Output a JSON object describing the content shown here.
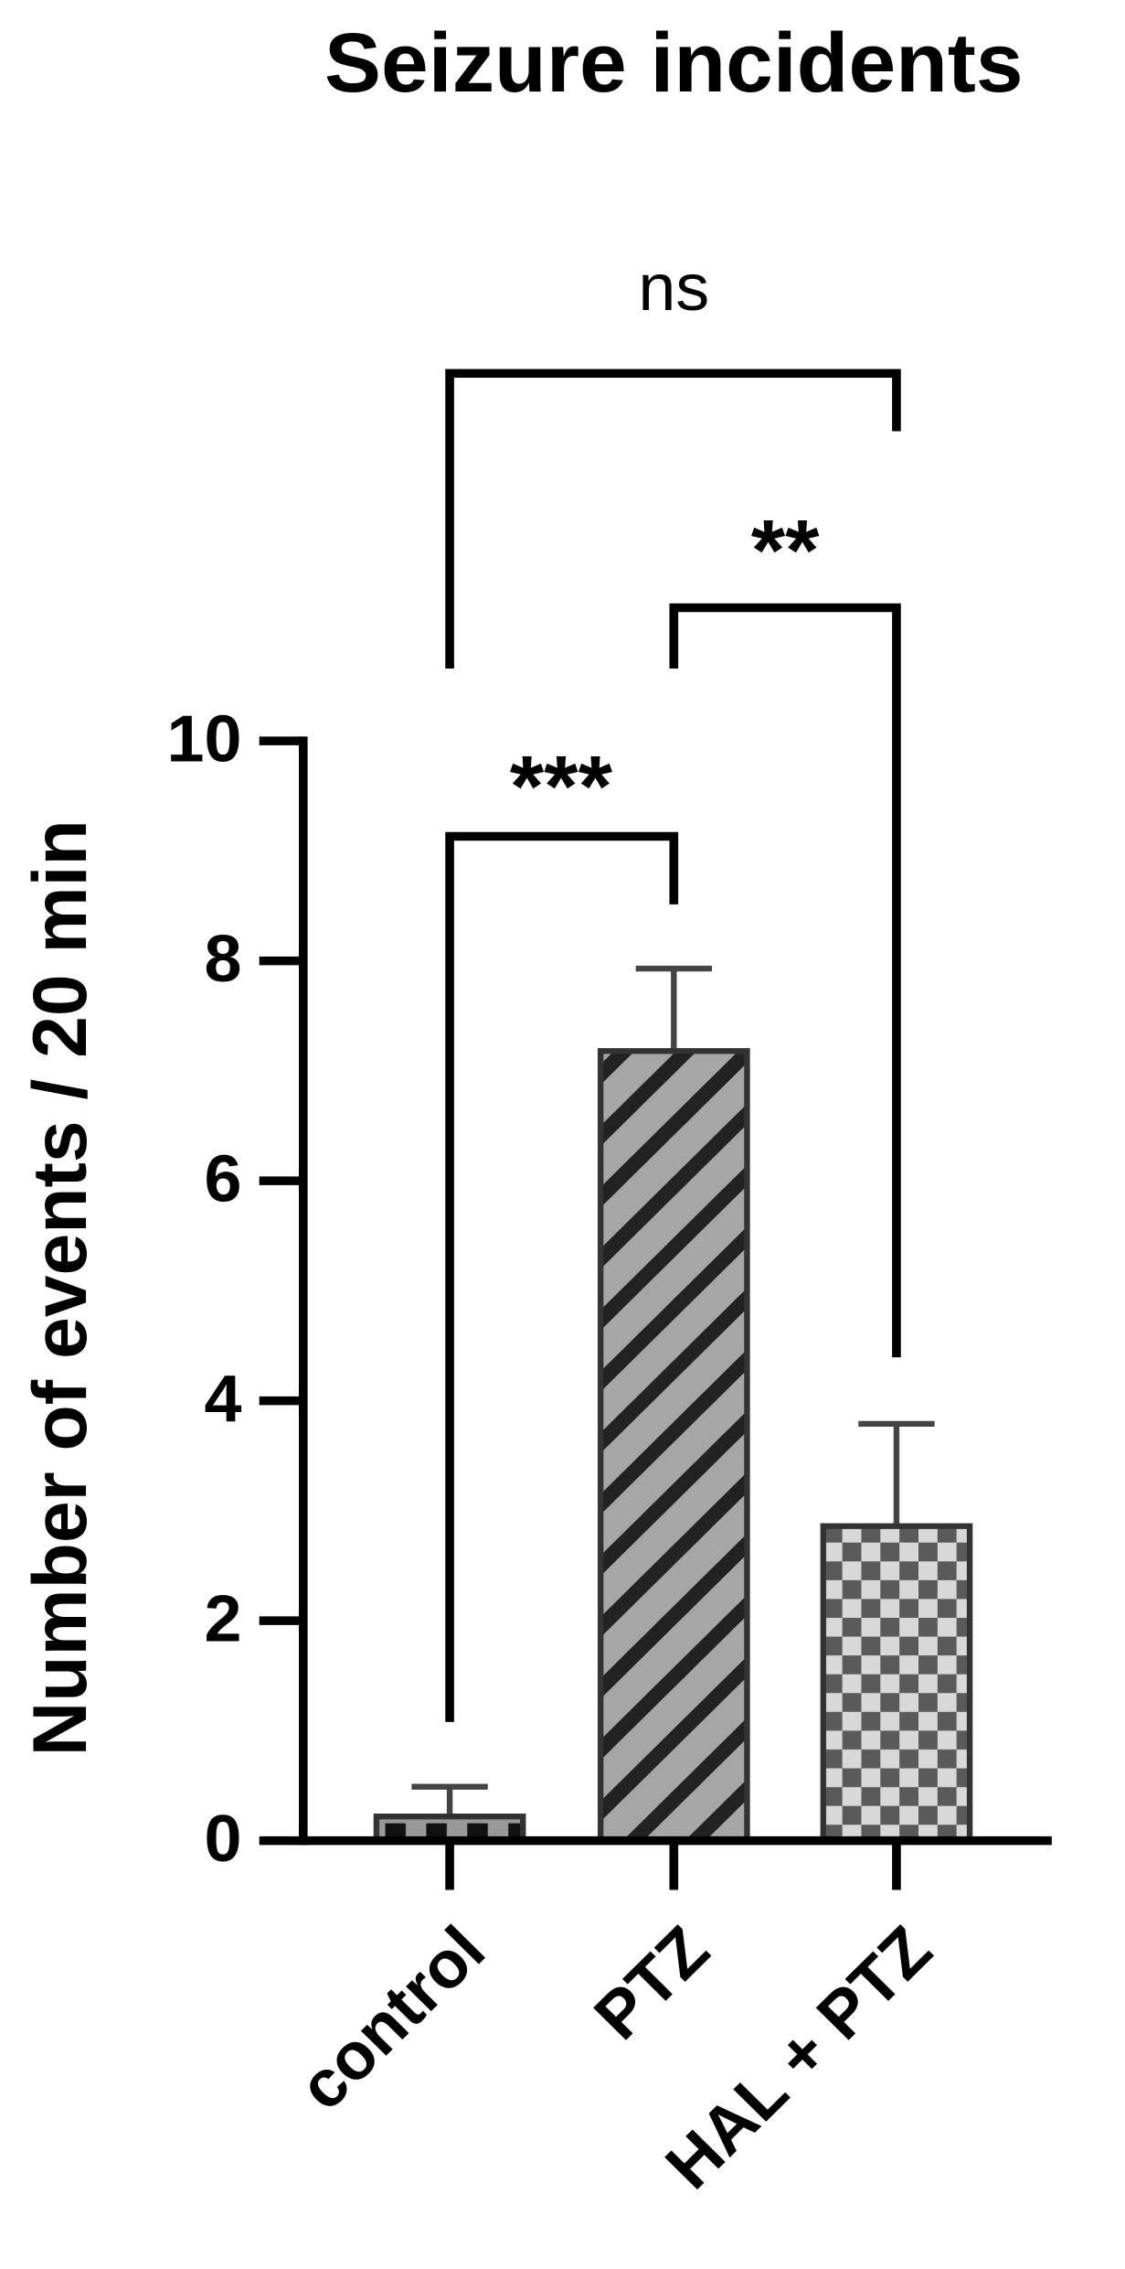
{
  "chart_data": {
    "type": "bar",
    "title": "Seizure incidents",
    "y_label": "Number of events / 20 min",
    "categories": [
      "control",
      "PTZ",
      "HAL + PTZ"
    ],
    "values": [
      0.22,
      7.18,
      2.86
    ],
    "errors": [
      0.27,
      0.75,
      0.93
    ],
    "ylim": [
      0,
      10
    ],
    "yticks": [
      0,
      2,
      4,
      6,
      8,
      10
    ],
    "annotations": [
      "***",
      "**",
      "ns"
    ]
  }
}
